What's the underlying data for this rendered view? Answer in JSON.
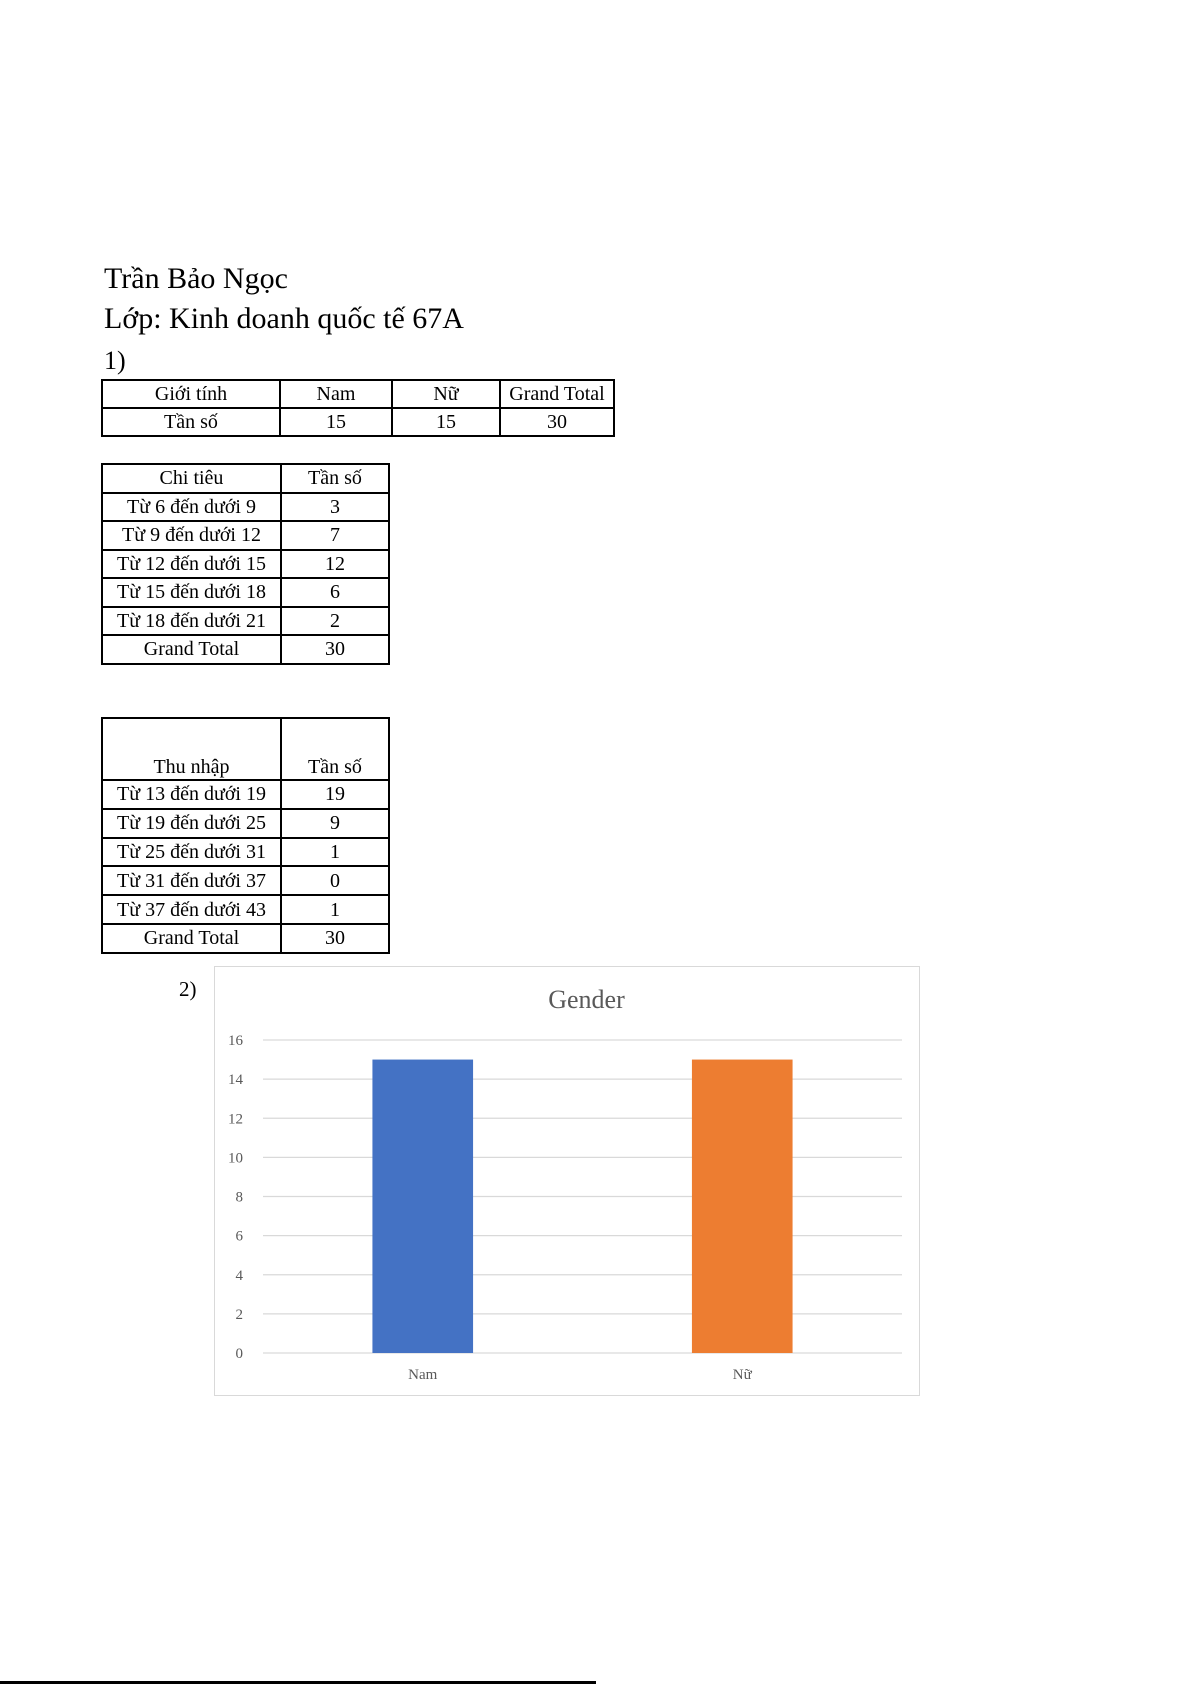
{
  "header": {
    "name": "Trần Bảo Ngọc",
    "class_line": "Lớp: Kinh doanh quốc tế 67A",
    "section1": "1)",
    "section2": "2)"
  },
  "table_gender": {
    "headers": [
      "Giới tính",
      "Nam",
      "Nữ",
      "Grand Total"
    ],
    "row": [
      "Tần số",
      "15",
      "15",
      "30"
    ]
  },
  "table_spending": {
    "headers": [
      "Chi tiêu",
      "Tần số"
    ],
    "rows": [
      [
        "Từ 6 đến dưới 9",
        "3"
      ],
      [
        "Từ 9 đến dưới 12",
        "7"
      ],
      [
        "Từ 12 đến dưới 15",
        "12"
      ],
      [
        "Từ 15 đến dưới 18",
        "6"
      ],
      [
        "Từ 18 đến dưới 21",
        "2"
      ],
      [
        "Grand Total",
        "30"
      ]
    ]
  },
  "table_income": {
    "headers": [
      "Thu nhập",
      "Tần số"
    ],
    "rows": [
      [
        "Từ 13 đến dưới 19",
        "19"
      ],
      [
        "Từ 19 đến dưới 25",
        "9"
      ],
      [
        "Từ 25 đến dưới 31",
        "1"
      ],
      [
        "Từ 31 đến dưới 37",
        "0"
      ],
      [
        "Từ 37 đến dưới 43",
        "1"
      ],
      [
        "Grand Total",
        "30"
      ]
    ]
  },
  "chart_data": {
    "type": "bar",
    "title": "Gender",
    "categories": [
      "Nam",
      "Nữ"
    ],
    "values": [
      15,
      15
    ],
    "colors": [
      "#4472C4",
      "#ED7D31"
    ],
    "ylim": [
      0,
      16
    ],
    "yticks": [
      "0",
      "2",
      "4",
      "6",
      "8",
      "10",
      "12",
      "14",
      "16"
    ],
    "grid": true,
    "xlabel": "",
    "ylabel": ""
  }
}
